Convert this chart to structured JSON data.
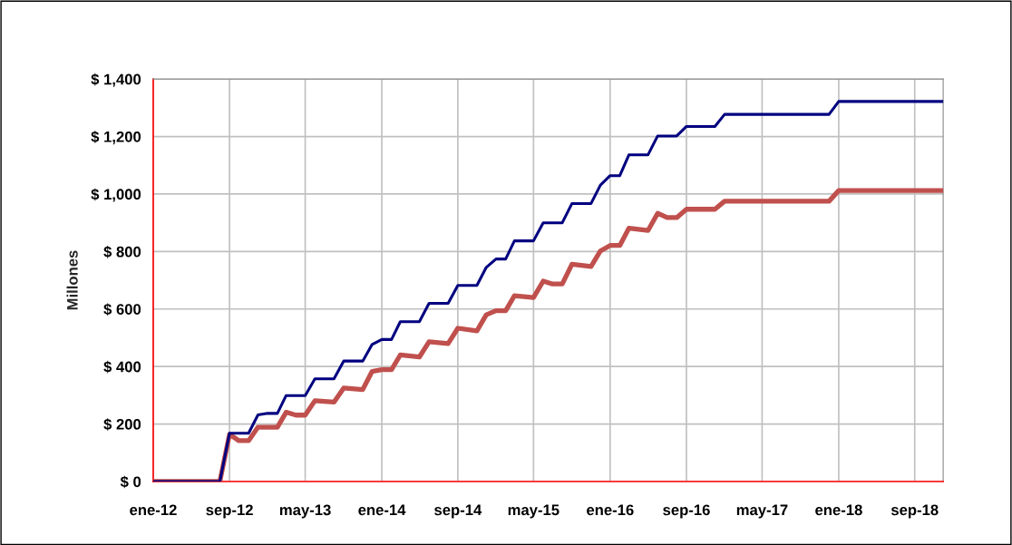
{
  "chart_data": {
    "type": "line",
    "ylabel": "Millones",
    "series": [
      {
        "color": "#000080",
        "x": [
          "2012-01",
          "2012-08",
          "2012-09",
          "2012-11",
          "2012-12",
          "2013-01",
          "2013-02",
          "2013-03",
          "2013-05",
          "2013-06",
          "2013-08",
          "2013-09",
          "2013-11",
          "2013-12",
          "2014-01",
          "2014-02",
          "2014-03",
          "2014-05",
          "2014-06",
          "2014-08",
          "2014-09",
          "2014-11",
          "2014-12",
          "2015-01",
          "2015-02",
          "2015-03",
          "2015-05",
          "2015-06",
          "2015-08",
          "2015-09",
          "2015-11",
          "2015-12",
          "2016-01",
          "2016-02",
          "2016-03",
          "2016-05",
          "2016-06",
          "2016-08",
          "2016-09",
          "2016-12",
          "2017-01",
          "2017-12",
          "2018-01",
          "2018-12"
        ],
        "values": [
          0,
          0,
          168,
          168,
          232,
          237,
          237,
          299,
          299,
          357,
          357,
          419,
          419,
          477,
          494,
          494,
          556,
          556,
          620,
          620,
          682,
          682,
          745,
          774,
          774,
          837,
          837,
          900,
          900,
          967,
          967,
          1031,
          1064,
          1064,
          1136,
          1136,
          1202,
          1202,
          1235,
          1235,
          1277,
          1277,
          1322,
          1322
        ]
      },
      {
        "color": "#c0504d",
        "x": [
          "2012-01",
          "2012-08",
          "2012-09",
          "2012-10",
          "2012-11",
          "2012-12",
          "2013-02",
          "2013-03",
          "2013-04",
          "2013-05",
          "2013-06",
          "2013-08",
          "2013-09",
          "2013-11",
          "2013-12",
          "2014-01",
          "2014-02",
          "2014-03",
          "2014-05",
          "2014-06",
          "2014-08",
          "2014-09",
          "2014-11",
          "2014-12",
          "2015-01",
          "2015-02",
          "2015-03",
          "2015-05",
          "2015-06",
          "2015-07",
          "2015-08",
          "2015-09",
          "2015-11",
          "2015-12",
          "2016-01",
          "2016-02",
          "2016-03",
          "2016-05",
          "2016-06",
          "2016-07",
          "2016-08",
          "2016-09",
          "2016-12",
          "2017-01",
          "2017-12",
          "2018-01",
          "2018-12"
        ],
        "values": [
          0,
          0,
          164,
          142,
          142,
          189,
          189,
          241,
          231,
          231,
          281,
          276,
          325,
          320,
          383,
          389,
          389,
          440,
          433,
          486,
          480,
          533,
          524,
          580,
          594,
          594,
          646,
          640,
          697,
          687,
          687,
          756,
          748,
          802,
          821,
          821,
          881,
          873,
          933,
          918,
          918,
          947,
          947,
          975,
          975,
          1012,
          1012
        ]
      }
    ],
    "xlim": [
      "2012-01",
      "2018-12"
    ],
    "xticks": [
      {
        "value": "2012-01",
        "label": "ene-12"
      },
      {
        "value": "2012-09",
        "label": "sep-12"
      },
      {
        "value": "2013-05",
        "label": "may-13"
      },
      {
        "value": "2014-01",
        "label": "ene-14"
      },
      {
        "value": "2014-09",
        "label": "sep-14"
      },
      {
        "value": "2015-05",
        "label": "may-15"
      },
      {
        "value": "2016-01",
        "label": "ene-16"
      },
      {
        "value": "2016-09",
        "label": "sep-16"
      },
      {
        "value": "2017-05",
        "label": "may-17"
      },
      {
        "value": "2018-01",
        "label": "ene-18"
      },
      {
        "value": "2018-09",
        "label": "sep-18"
      }
    ],
    "ylim": [
      0,
      1400
    ],
    "yticks": [
      {
        "value": 0,
        "label": "$ 0"
      },
      {
        "value": 200,
        "label": "$ 200"
      },
      {
        "value": 400,
        "label": "$ 400"
      },
      {
        "value": 600,
        "label": "$ 600"
      },
      {
        "value": 800,
        "label": "$ 800"
      },
      {
        "value": 1000,
        "label": "$ 1,000"
      },
      {
        "value": 1200,
        "label": "$ 1,200"
      },
      {
        "value": 1400,
        "label": "$ 1,400"
      }
    ],
    "grid": true,
    "legend": false,
    "marker": "none",
    "line_style": "solid"
  }
}
